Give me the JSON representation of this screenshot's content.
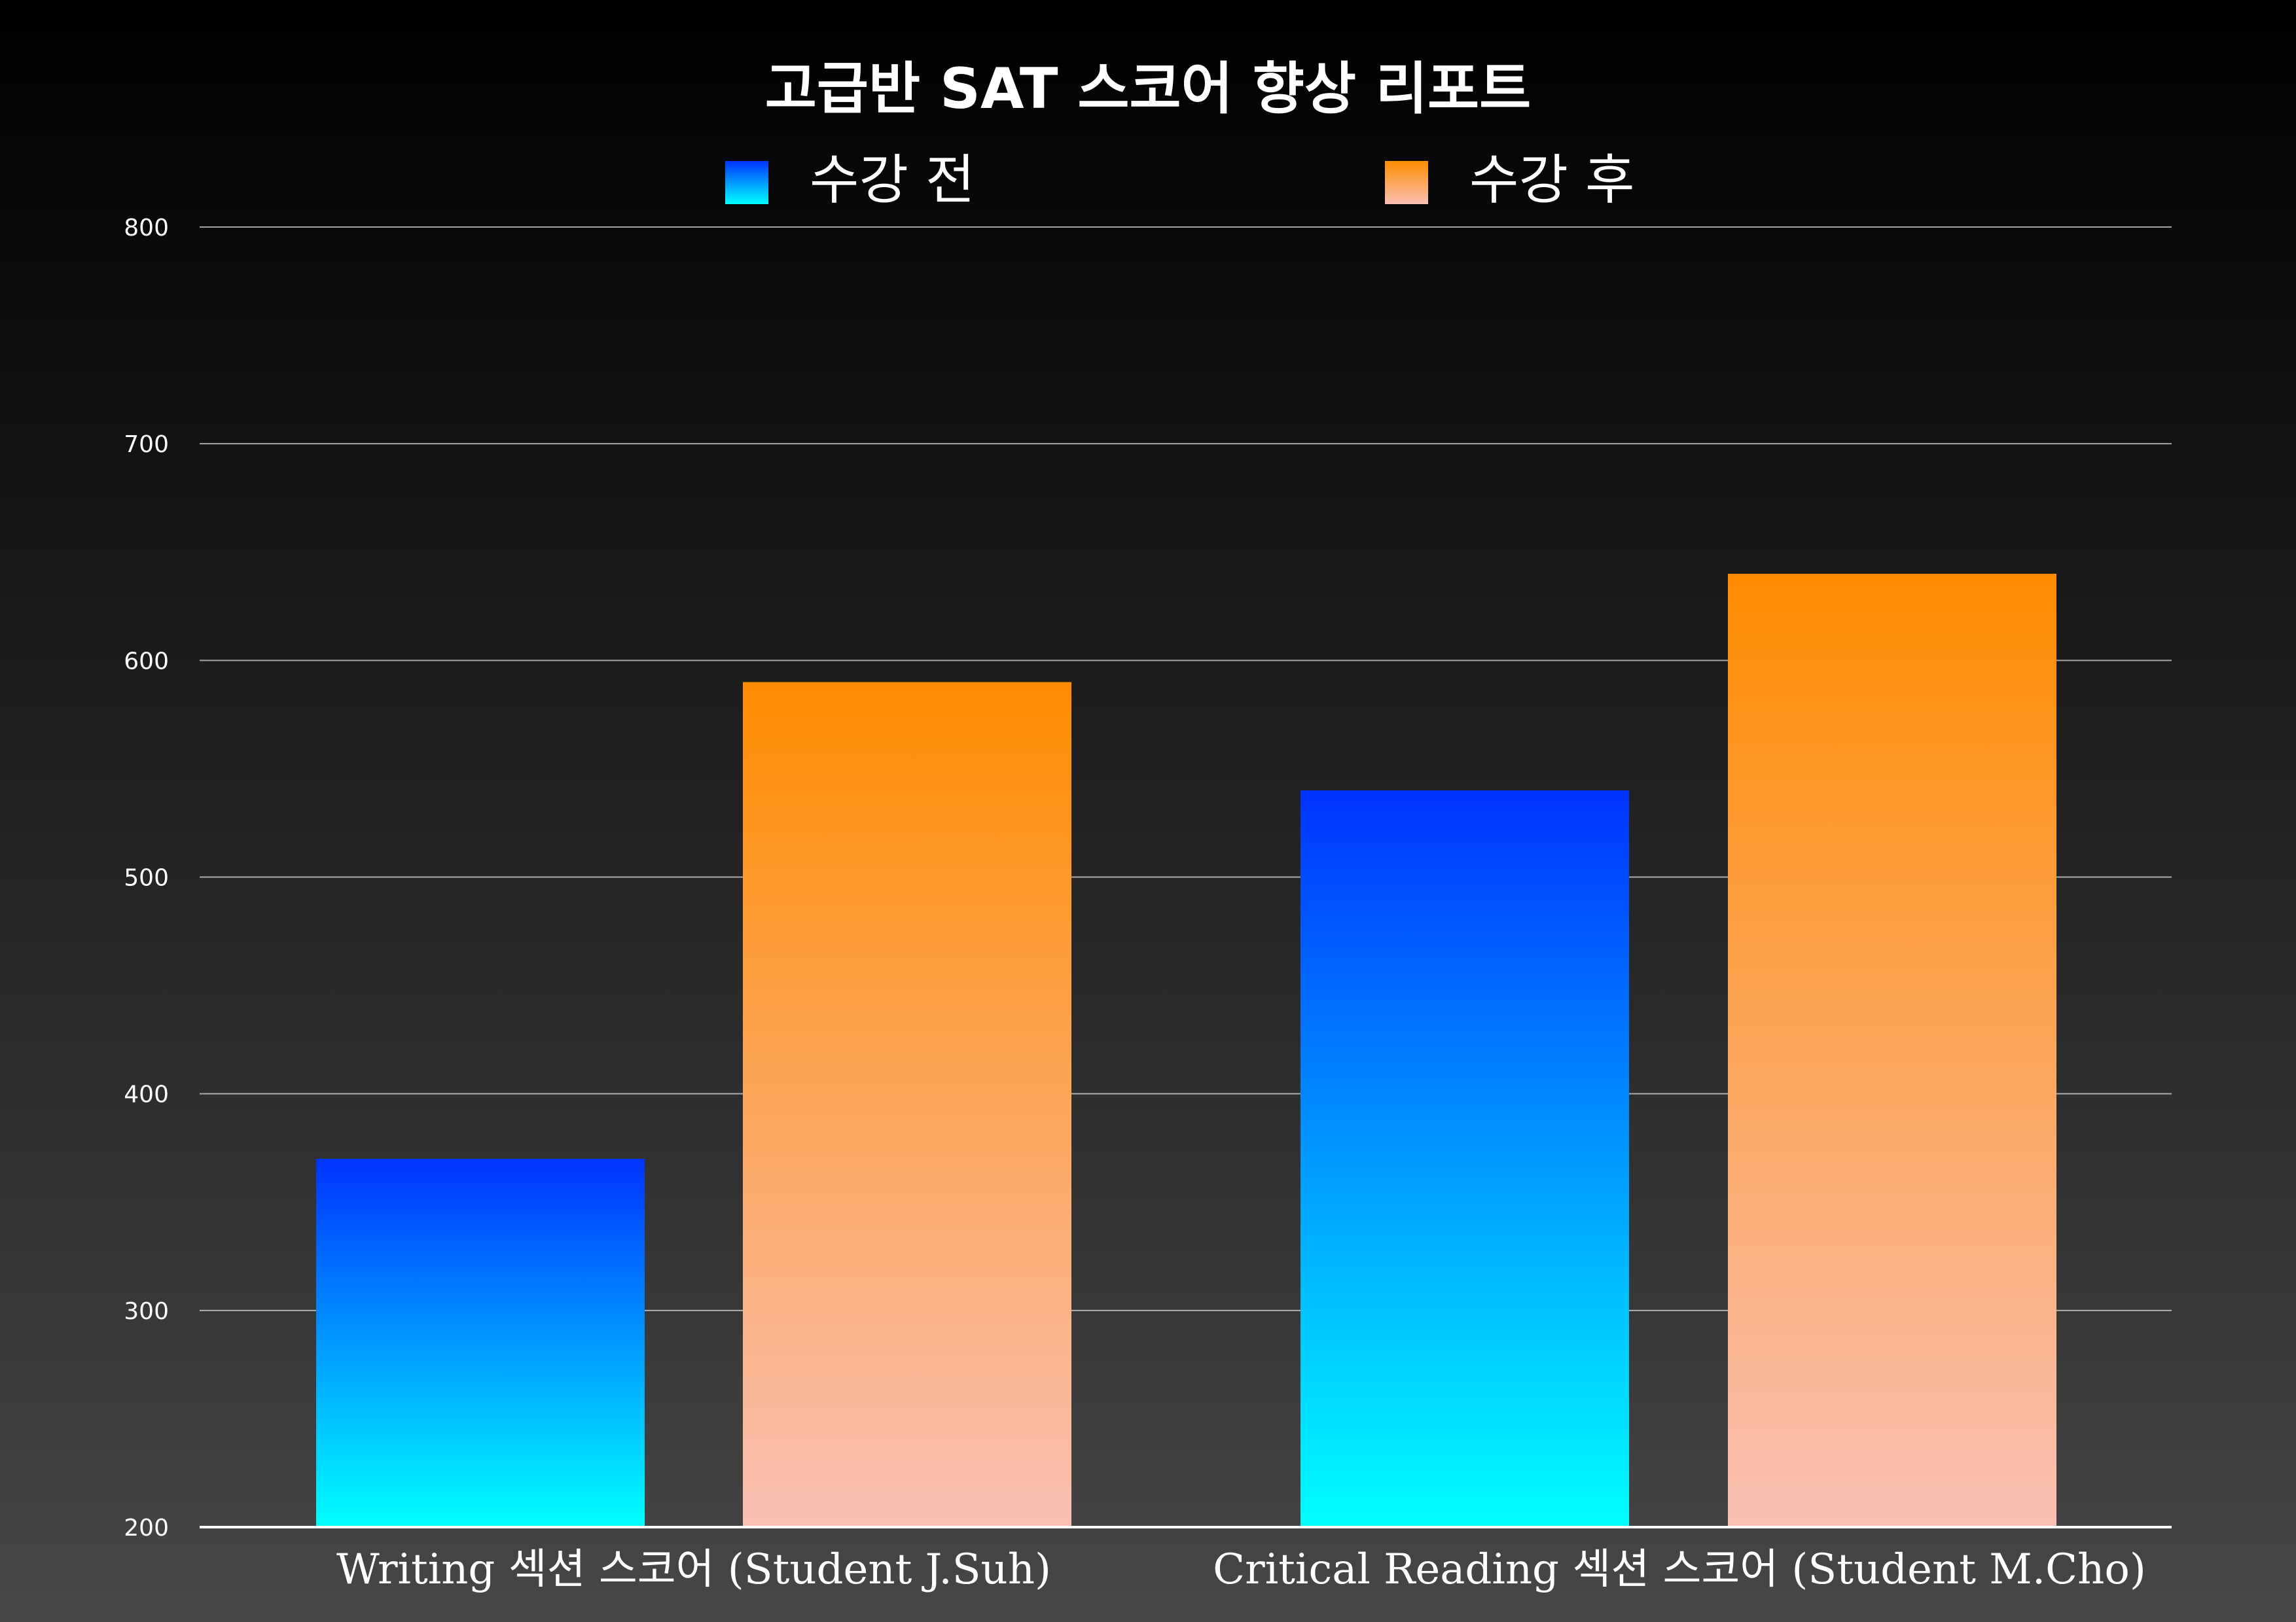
{
  "chart_data": {
    "type": "bar",
    "title": "고급반 SAT 스코어 향상 리포트",
    "categories": [
      "Writing 섹션 스코어 (Student J.Suh)",
      "Critical Reading 섹션 스코어 (Student M.Cho)"
    ],
    "series": [
      {
        "name": "수강 전",
        "values": [
          370,
          540
        ],
        "gradient": [
          "#0033ff",
          "#00ffff"
        ]
      },
      {
        "name": "수강 후",
        "values": [
          590,
          640
        ],
        "gradient": [
          "#ff8c00",
          "#f9c0b4"
        ]
      }
    ],
    "ylim": [
      200,
      800
    ],
    "yticks": [
      200,
      300,
      400,
      500,
      600,
      700,
      800
    ],
    "xlabel": "",
    "ylabel": "",
    "grid": true,
    "legend_position": "top-center"
  }
}
